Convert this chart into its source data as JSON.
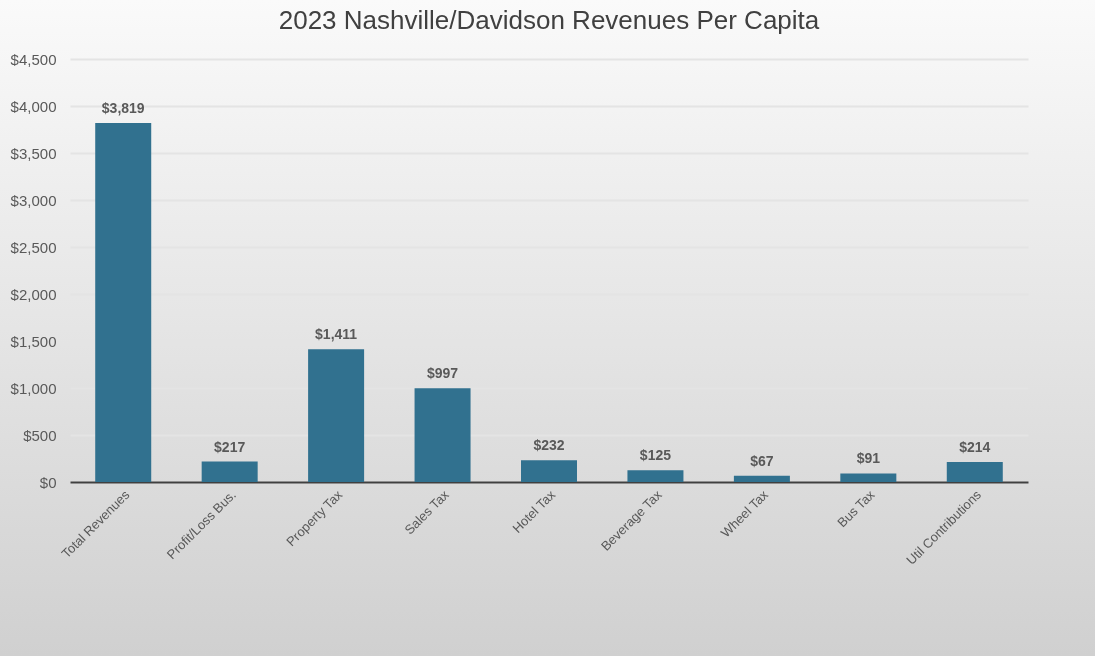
{
  "chart_data": {
    "type": "bar",
    "title": "2023 Nashville/Davidson Revenues Per Capita",
    "categories": [
      "Total Revenues",
      "Profit/Loss Bus.",
      "Property Tax",
      "Sales Tax",
      "Hotel Tax",
      "Beverage Tax",
      "Wheel Tax",
      "Bus Tax",
      "Util Contributions"
    ],
    "values": [
      3819,
      217,
      1411,
      997,
      232,
      125,
      67,
      91,
      214
    ],
    "color": "#31718f",
    "ylim": [
      0,
      4500
    ],
    "yticks": [
      {
        "value": 0,
        "label": "$0"
      },
      {
        "value": 500,
        "label": "$500"
      },
      {
        "value": 1000,
        "label": "$1,000"
      },
      {
        "value": 1500,
        "label": "$1,500"
      },
      {
        "value": 2000,
        "label": "$2,000"
      },
      {
        "value": 2500,
        "label": "$2,500"
      },
      {
        "value": 3000,
        "label": "$3,000"
      },
      {
        "value": 3500,
        "label": "$3,500"
      },
      {
        "value": 4000,
        "label": "$4,000"
      },
      {
        "value": 4500,
        "label": "$4,500"
      }
    ],
    "value_labels": [
      "$3,819",
      "$217",
      "$1,411",
      "$997",
      "$232",
      "$125",
      "$67",
      "$91",
      "$214"
    ],
    "grid": true
  }
}
